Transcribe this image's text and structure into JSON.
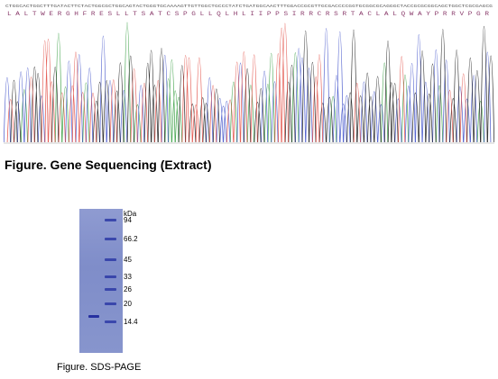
{
  "sequencing": {
    "caption": "Figure. Gene Sequencing (Extract)",
    "bases_top": "CTGGCACTGGCTTTGATACTTCTACTGGCGCTGGCAGTACTGGGTGCAAAAGTTGTTGGCTGCCCTATCTGATGGCAACTTTGGACCGCGTTGCGACCCCGGTGCGGCGCAGGGCTACCGCGCGGCAGCTGGCTCGCGAGCG",
    "residues": "L A L T W E R G H F R E S L L T S A T C S P G L L Q L H L I I P P S I R R C R S R T A C L A L Q W A Y P R R V P G R",
    "trace_colors": [
      "#e0453c",
      "#2f9a3a",
      "#3b4cc8",
      "#111111"
    ]
  },
  "sds_page": {
    "caption": "Figure. SDS-PAGE",
    "unit_label": "kDa",
    "markers": [
      {
        "label": "94",
        "kda": 94
      },
      {
        "label": "66.2",
        "kda": 66.2
      },
      {
        "label": "45",
        "kda": 45
      },
      {
        "label": "33",
        "kda": 33
      },
      {
        "label": "26",
        "kda": 26
      },
      {
        "label": "20",
        "kda": 20
      },
      {
        "label": "14.4",
        "kda": 14.4
      }
    ],
    "sample_band_kda": 16,
    "colors": {
      "gel": "#8491cc",
      "band": "#2d3aa6"
    }
  }
}
